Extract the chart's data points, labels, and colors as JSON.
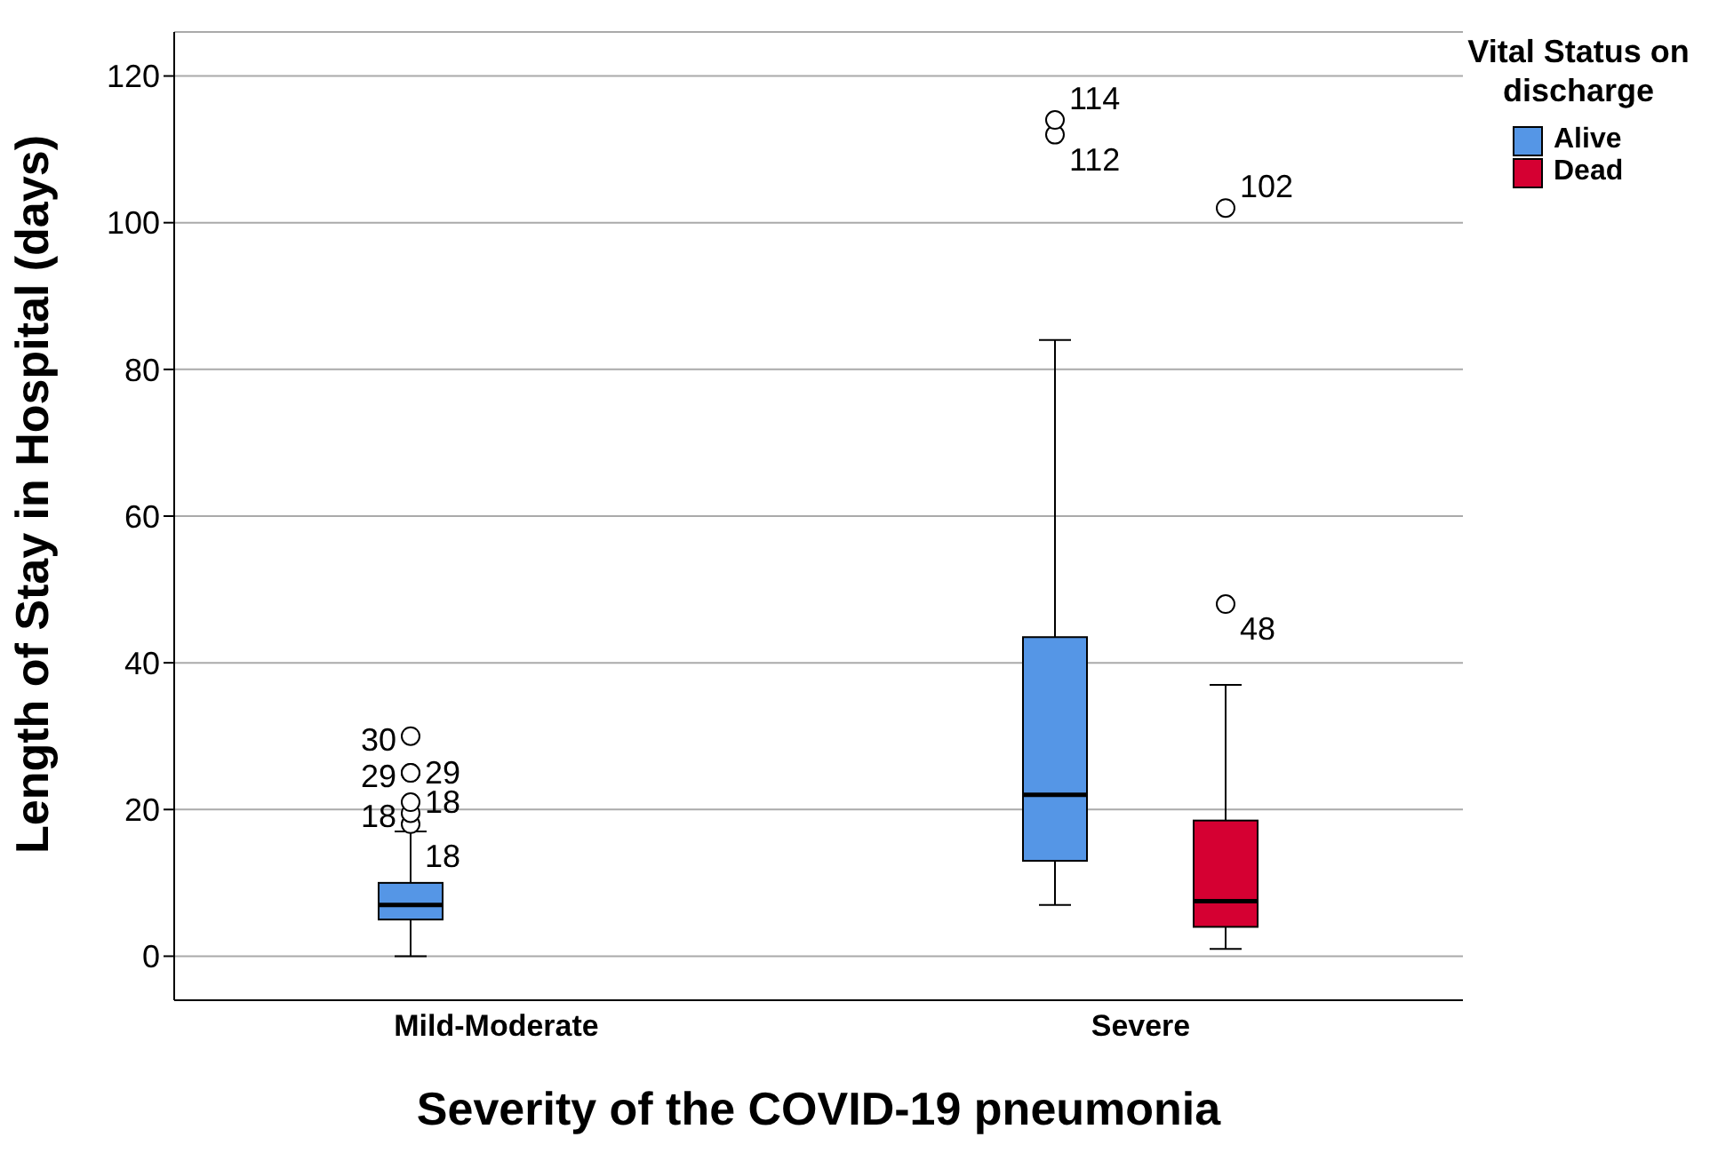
{
  "chart_data": {
    "type": "box",
    "xlabel": "Severity of the COVID-19 pneumonia",
    "ylabel": "Length of Stay in Hospital (days)",
    "legend_title": "Vital Status on discharge",
    "categories": [
      "Mild-Moderate",
      "Severe"
    ],
    "series": [
      {
        "name": "Alive",
        "color": "#5596e6",
        "boxes": [
          {
            "low": 0,
            "q1": 5,
            "median": 7,
            "q3": 10,
            "high": 17,
            "outliers": [
              18,
              19.5,
              21,
              25,
              25,
              30
            ]
          },
          {
            "low": 7,
            "q1": 13,
            "median": 22,
            "q3": 43.5,
            "high": 84,
            "outliers": [
              112,
              114
            ]
          }
        ]
      },
      {
        "name": "Dead",
        "color": "#d50032",
        "boxes": [
          null,
          {
            "low": 1,
            "q1": 4,
            "median": 7.5,
            "q3": 18.5,
            "high": 37,
            "outliers": [
              48,
              102
            ]
          }
        ]
      }
    ],
    "ylim": [
      -6,
      126
    ],
    "yticks": [
      0,
      20,
      40,
      60,
      80,
      100,
      120
    ],
    "grid": "y",
    "legend": "top right",
    "annotations": [
      "18",
      "18",
      "18",
      "29",
      "29",
      "30",
      "112",
      "114",
      "48",
      "102"
    ]
  }
}
